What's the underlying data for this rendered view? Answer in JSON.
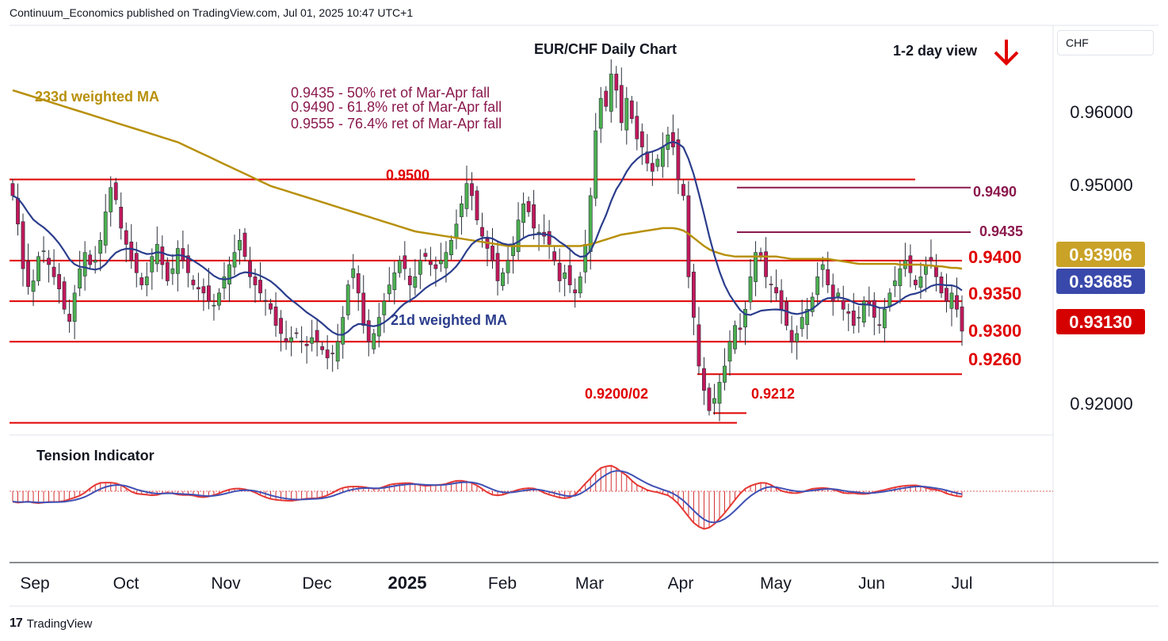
{
  "header": {
    "publisher_line": "Continuum_Economics published on TradingView.com, Jul 01, 2025 10:47 UTC+1"
  },
  "footer": {
    "brand": "TradingView",
    "logo_glyph": "17"
  },
  "currency": "CHF",
  "chart_data": [
    {
      "type": "candlestick",
      "title": "EUR/CHF Daily Chart",
      "view_label": "1-2 day view",
      "view_direction": "down",
      "colors": {
        "up": "#4caf50",
        "down": "#c2185b",
        "wick": "#2a2e39",
        "support_resistance": "#e00000",
        "retracement": "#8b1a4e",
        "ma233": "#b8900a",
        "ma21": "#2b3d8c"
      },
      "x_axis": {
        "ticks": [
          "Sep",
          "Oct",
          "Nov",
          "Dec",
          "2025",
          "Feb",
          "Mar",
          "Apr",
          "May",
          "Jun",
          "Jul"
        ]
      },
      "y_axis": {
        "ticks": [
          "0.96000",
          "0.95000",
          "0.92000"
        ],
        "range": [
          0.9185,
          0.969
        ]
      },
      "last_price_labels": [
        {
          "text": "0.93906",
          "value": 0.93906,
          "bg": "#c9a227",
          "color": "#ffffff"
        },
        {
          "text": "0.93685",
          "value": 0.93685,
          "bg": "#3949ab",
          "color": "#ffffff"
        },
        {
          "text": "0.93130",
          "value": 0.9313,
          "bg": "#d50000",
          "color": "#ffffff"
        }
      ],
      "levels": [
        {
          "label": "0.9500",
          "value": 0.95
        },
        {
          "label": "0.9400",
          "value": 0.94
        },
        {
          "label": "0.9350",
          "value": 0.935
        },
        {
          "label": "0.9300",
          "value": 0.93
        },
        {
          "label": "0.9260",
          "value": 0.926
        },
        {
          "label": "0.9200/02",
          "value": 0.92
        },
        {
          "label": "0.9212",
          "value": 0.9212
        },
        {
          "label": "0.9490",
          "value": 0.949
        },
        {
          "label": "0.9435",
          "value": 0.9435
        }
      ],
      "annotations": [
        "0.9435 - 50% ret of Mar-Apr fall",
        "0.9490 - 61.8% ret of Mar-Apr fall",
        "0.9555 - 76.4% ret of Mar-Apr fall"
      ],
      "ma_labels": {
        "ma233": "233d weighted MA",
        "ma21": "21d weighted MA"
      },
      "closes": [
        0.948,
        0.9445,
        0.939,
        0.9368,
        0.9375,
        0.9405,
        0.9412,
        0.9395,
        0.938,
        0.9365,
        0.934,
        0.9325,
        0.936,
        0.939,
        0.941,
        0.9395,
        0.94,
        0.9425,
        0.946,
        0.949,
        0.9475,
        0.944,
        0.942,
        0.94,
        0.9385,
        0.937,
        0.938,
        0.9405,
        0.942,
        0.9395,
        0.9375,
        0.939,
        0.9415,
        0.94,
        0.9385,
        0.937,
        0.9365,
        0.936,
        0.935,
        0.9345,
        0.936,
        0.938,
        0.9395,
        0.941,
        0.9425,
        0.9405,
        0.938,
        0.937,
        0.936,
        0.935,
        0.934,
        0.932,
        0.931,
        0.93,
        0.9305,
        0.931,
        0.93,
        0.9295,
        0.9305,
        0.93,
        0.929,
        0.928,
        0.9285,
        0.93,
        0.933,
        0.937,
        0.939,
        0.936,
        0.932,
        0.93,
        0.931,
        0.933,
        0.935,
        0.937,
        0.9385,
        0.94,
        0.939,
        0.937,
        0.938,
        0.94,
        0.9405,
        0.9395,
        0.939,
        0.94,
        0.941,
        0.9425,
        0.9445,
        0.947,
        0.9495,
        0.948,
        0.945,
        0.943,
        0.9415,
        0.94,
        0.9375,
        0.9385,
        0.94,
        0.942,
        0.945,
        0.947,
        0.946,
        0.944,
        0.9435,
        0.943,
        0.942,
        0.94,
        0.9375,
        0.9385,
        0.937,
        0.936,
        0.938,
        0.942,
        0.948,
        0.956,
        0.96,
        0.959,
        0.963,
        0.961,
        0.957,
        0.96,
        0.9575,
        0.955,
        0.954,
        0.952,
        0.951,
        0.9525,
        0.954,
        0.9555,
        0.954,
        0.95,
        0.948,
        0.938,
        0.933,
        0.927,
        0.924,
        0.9215,
        0.923,
        0.925,
        0.927,
        0.93,
        0.932,
        0.9315,
        0.934,
        0.938,
        0.941,
        0.9405,
        0.938,
        0.937,
        0.936,
        0.934,
        0.932,
        0.93,
        0.931,
        0.933,
        0.934,
        0.9355,
        0.938,
        0.9395,
        0.937,
        0.935,
        0.936,
        0.934,
        0.9335,
        0.932,
        0.933,
        0.935,
        0.9345,
        0.933,
        0.932,
        0.934,
        0.936,
        0.9375,
        0.939,
        0.94,
        0.9385,
        0.937,
        0.938,
        0.9395,
        0.94,
        0.938,
        0.936,
        0.935,
        0.936,
        0.934,
        0.9313
      ],
      "ma233": [
        0.961,
        0.9608,
        0.9606,
        0.9604,
        0.9602,
        0.96,
        0.9598,
        0.9596,
        0.9594,
        0.9592,
        0.959,
        0.9588,
        0.9586,
        0.9584,
        0.9582,
        0.958,
        0.9578,
        0.9576,
        0.9574,
        0.9572,
        0.957,
        0.9568,
        0.9566,
        0.9564,
        0.9562,
        0.956,
        0.9558,
        0.9556,
        0.9554,
        0.9552,
        0.955,
        0.9548,
        0.9546,
        0.9543,
        0.954,
        0.9537,
        0.9534,
        0.9531,
        0.9528,
        0.9525,
        0.9522,
        0.9519,
        0.9516,
        0.9513,
        0.951,
        0.9507,
        0.9504,
        0.9501,
        0.9498,
        0.9495,
        0.9492,
        0.949,
        0.9488,
        0.9486,
        0.9484,
        0.9482,
        0.948,
        0.9478,
        0.9476,
        0.9474,
        0.9472,
        0.947,
        0.9468,
        0.9466,
        0.9464,
        0.9462,
        0.946,
        0.9458,
        0.9456,
        0.9454,
        0.9452,
        0.945,
        0.9448,
        0.9446,
        0.9444,
        0.9442,
        0.944,
        0.9438,
        0.9436,
        0.9435,
        0.9434,
        0.9433,
        0.9432,
        0.9431,
        0.943,
        0.9429,
        0.9428,
        0.9427,
        0.9426,
        0.9425,
        0.9424,
        0.9423,
        0.9422,
        0.9421,
        0.942,
        0.9419,
        0.9418,
        0.9418,
        0.9418,
        0.9418,
        0.9418,
        0.9418,
        0.9418,
        0.9418,
        0.9418,
        0.9418,
        0.9418,
        0.9418,
        0.9418,
        0.9418,
        0.9418,
        0.9419,
        0.942,
        0.9422,
        0.9424,
        0.9426,
        0.9428,
        0.943,
        0.9432,
        0.9433,
        0.9434,
        0.9435,
        0.9436,
        0.9437,
        0.9438,
        0.9439,
        0.944,
        0.944,
        0.944,
        0.9439,
        0.9437,
        0.9433,
        0.9428,
        0.9423,
        0.9418,
        0.9414,
        0.9411,
        0.9409,
        0.9407,
        0.9406,
        0.9405,
        0.9405,
        0.9405,
        0.9405,
        0.9405,
        0.9405,
        0.9405,
        0.9405,
        0.9405,
        0.9404,
        0.9403,
        0.9402,
        0.9402,
        0.9402,
        0.9402,
        0.9402,
        0.9402,
        0.9402,
        0.9402,
        0.9401,
        0.94,
        0.9399,
        0.9398,
        0.9397,
        0.9396,
        0.9396,
        0.9396,
        0.9396,
        0.9396,
        0.9396,
        0.9396,
        0.9396,
        0.9395,
        0.9395,
        0.9395,
        0.9395,
        0.9395,
        0.9394,
        0.9394,
        0.9393,
        0.9393,
        0.9392,
        0.9391,
        0.9391,
        0.939
      ],
      "tension": {
        "label": "Tension Indicator"
      }
    }
  ]
}
